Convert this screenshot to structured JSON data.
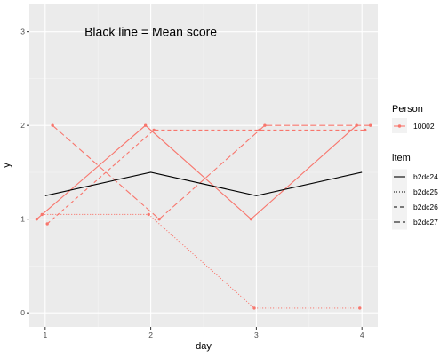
{
  "chart_data": {
    "type": "line",
    "xlabel": "day",
    "ylabel": "y",
    "xlim": [
      0.85,
      4.15
    ],
    "ylim": [
      -0.15,
      3.3
    ],
    "x_ticks": [
      1,
      2,
      3,
      4
    ],
    "y_ticks": [
      0,
      1,
      2,
      3
    ],
    "grid": true,
    "annotation": {
      "text": "Black line = Mean score",
      "x": 2.0,
      "y": 3.0
    },
    "person_color": "#F8766D",
    "mean_color": "#000000",
    "series": [
      {
        "name": "b2dc24",
        "linetype": "solid",
        "points": [
          [
            0.92,
            1.0
          ],
          [
            1.95,
            2.0
          ],
          [
            2.95,
            1.0
          ],
          [
            3.95,
            2.0
          ]
        ]
      },
      {
        "name": "b2dc25",
        "linetype": "dotted",
        "points": [
          [
            0.97,
            1.05
          ],
          [
            1.98,
            1.05
          ],
          [
            2.98,
            0.05
          ],
          [
            3.98,
            0.05
          ]
        ]
      },
      {
        "name": "b2dc26",
        "linetype": "dashed",
        "points": [
          [
            1.02,
            0.95
          ],
          [
            2.03,
            1.95
          ],
          [
            3.03,
            1.95
          ],
          [
            4.03,
            1.95
          ]
        ]
      },
      {
        "name": "b2dc27",
        "linetype": "longdash",
        "points": [
          [
            1.07,
            2.0
          ],
          [
            2.08,
            1.0
          ],
          [
            3.08,
            2.0
          ],
          [
            4.08,
            2.0
          ]
        ]
      }
    ],
    "mean_line": {
      "points": [
        [
          1,
          1.25
        ],
        [
          2,
          1.5
        ],
        [
          3,
          1.25
        ],
        [
          4,
          1.5
        ]
      ]
    },
    "legend": {
      "placement": "right",
      "person_title": "Person",
      "person_entries": [
        "10002"
      ],
      "item_title": "item",
      "item_entries": [
        "b2dc24",
        "b2dc25",
        "b2dc26",
        "b2dc27"
      ]
    }
  }
}
